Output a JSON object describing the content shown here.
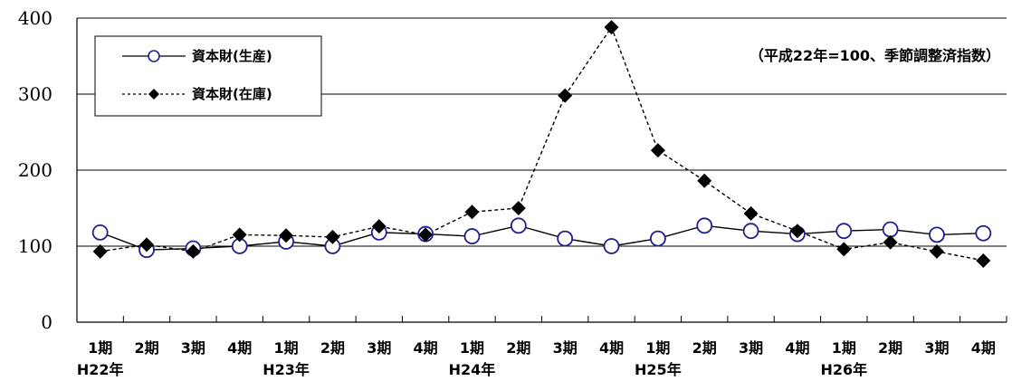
{
  "chart_data": {
    "type": "line",
    "title": "",
    "note": "（平成22年=100、季節調整済指数）",
    "ylim": [
      0,
      400
    ],
    "yticks": [
      0,
      100,
      200,
      300,
      400
    ],
    "grid": "horizontal",
    "legend_position": "top-left",
    "categories": [
      "1期",
      "2期",
      "3期",
      "4期",
      "1期",
      "2期",
      "3期",
      "4期",
      "1期",
      "2期",
      "3期",
      "4期",
      "1期",
      "2期",
      "3期",
      "4期",
      "1期",
      "2期",
      "3期",
      "4期"
    ],
    "year_labels": [
      {
        "label": "H22年",
        "index": 0
      },
      {
        "label": "H23年",
        "index": 4
      },
      {
        "label": "H24年",
        "index": 8
      },
      {
        "label": "H25年",
        "index": 12
      },
      {
        "label": "H26年",
        "index": 16
      }
    ],
    "series": [
      {
        "name": "資本財(生産)",
        "style": "solid-open-circle",
        "color": "#1f1f8f",
        "values": [
          118,
          95,
          97,
          100,
          106,
          100,
          118,
          116,
          113,
          127,
          110,
          100,
          110,
          127,
          120,
          116,
          120,
          122,
          115,
          117
        ]
      },
      {
        "name": "資本財(在庫)",
        "style": "dashed-filled-diamond",
        "color": "#000000",
        "values": [
          93,
          102,
          93,
          115,
          114,
          112,
          126,
          115,
          145,
          150,
          298,
          388,
          226,
          186,
          143,
          120,
          96,
          105,
          93,
          81
        ]
      }
    ]
  }
}
